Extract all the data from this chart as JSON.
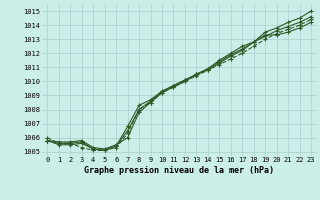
{
  "xlabel": "Graphe pression niveau de la mer (hPa)",
  "xlim": [
    -0.5,
    23.5
  ],
  "ylim": [
    1004.7,
    1015.5
  ],
  "yticks": [
    1005,
    1006,
    1007,
    1008,
    1009,
    1010,
    1011,
    1012,
    1013,
    1014,
    1015
  ],
  "xticks": [
    0,
    1,
    2,
    3,
    4,
    5,
    6,
    7,
    8,
    9,
    10,
    11,
    12,
    13,
    14,
    15,
    16,
    17,
    18,
    19,
    20,
    21,
    22,
    23
  ],
  "background_color": "#cceee8",
  "grid_color": "#aacccc",
  "line_color": "#2d5a27",
  "series": [
    [
      1005.8,
      1005.7,
      1005.7,
      1005.8,
      1005.3,
      1005.2,
      1005.5,
      1006.0,
      1007.8,
      1008.5,
      1009.2,
      1009.6,
      1010.0,
      1010.5,
      1010.8,
      1011.3,
      1011.8,
      1012.2,
      1012.8,
      1013.5,
      1013.8,
      1014.2,
      1014.5,
      1015.0
    ],
    [
      1005.8,
      1005.5,
      1005.5,
      1005.6,
      1005.2,
      1005.1,
      1005.4,
      1006.5,
      1008.0,
      1008.6,
      1009.3,
      1009.7,
      1010.1,
      1010.5,
      1010.9,
      1011.4,
      1011.9,
      1012.3,
      1012.8,
      1013.3,
      1013.3,
      1013.5,
      1013.8,
      1014.2
    ],
    [
      1006.0,
      1005.6,
      1005.6,
      1005.3,
      1005.1,
      1005.1,
      1005.3,
      1006.3,
      1008.0,
      1008.5,
      1009.2,
      1009.6,
      1010.0,
      1010.4,
      1010.8,
      1011.2,
      1011.6,
      1012.0,
      1012.5,
      1013.0,
      1013.4,
      1013.7,
      1014.0,
      1014.4
    ],
    [
      1005.8,
      1005.6,
      1005.6,
      1005.7,
      1005.2,
      1005.1,
      1005.4,
      1006.8,
      1008.3,
      1008.7,
      1009.3,
      1009.7,
      1010.1,
      1010.5,
      1010.9,
      1011.5,
      1012.0,
      1012.5,
      1012.8,
      1013.2,
      1013.6,
      1013.9,
      1014.2,
      1014.6
    ]
  ],
  "linestyles": [
    "-",
    "-",
    "--",
    "-"
  ],
  "marker": "+",
  "markersize": 3,
  "linewidth": 0.8
}
